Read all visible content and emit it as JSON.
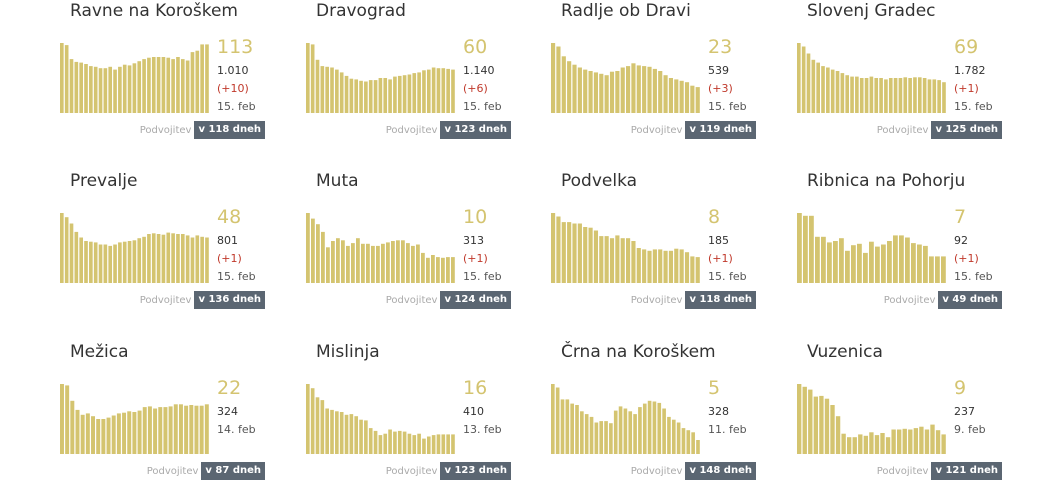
{
  "bar_color": "#d4c470",
  "number_color": "#d4c470",
  "delta_color": "#c0392b",
  "badge_color": "#5b6672",
  "doubling_label": "Podvojitev",
  "chart_data": [
    {
      "type": "bar",
      "title": "Ravne na Koroškem",
      "current": "113",
      "total": "1.010",
      "delta": "(+10)",
      "date": "15. feb",
      "doubling": "v 118 dneh",
      "values": [
        100,
        97,
        77,
        73,
        72,
        70,
        67,
        66,
        64,
        64,
        66,
        62,
        66,
        69,
        68,
        71,
        74,
        77,
        79,
        80,
        80,
        80,
        79,
        77,
        80,
        77,
        75,
        87,
        89,
        98,
        98
      ]
    },
    {
      "type": "bar",
      "title": "Dravograd",
      "current": "60",
      "total": "1.140",
      "delta": "(+6)",
      "date": "15. feb",
      "doubling": "v 123 dneh",
      "values": [
        100,
        98,
        76,
        67,
        66,
        65,
        62,
        58,
        53,
        49,
        48,
        46,
        45,
        47,
        47,
        50,
        50,
        48,
        52,
        53,
        54,
        55,
        57,
        58,
        61,
        62,
        65,
        64,
        64,
        63,
        62
      ]
    },
    {
      "type": "bar",
      "title": "Radlje ob Dravi",
      "current": "23",
      "total": "539",
      "delta": "(+3)",
      "date": "15. feb",
      "doubling": "v 119 dneh",
      "values": [
        100,
        95,
        81,
        74,
        69,
        65,
        62,
        60,
        58,
        56,
        54,
        59,
        60,
        65,
        67,
        71,
        68,
        67,
        66,
        63,
        60,
        54,
        50,
        48,
        46,
        44,
        39,
        37
      ]
    },
    {
      "type": "bar",
      "title": "Slovenj Gradec",
      "current": "69",
      "total": "1.782",
      "delta": "(+1)",
      "date": "15. feb",
      "doubling": "v 125 dneh",
      "values": [
        100,
        95,
        85,
        76,
        72,
        67,
        65,
        62,
        60,
        57,
        54,
        52,
        52,
        50,
        50,
        52,
        50,
        50,
        48,
        50,
        50,
        50,
        51,
        50,
        51,
        51,
        50,
        48,
        48,
        47,
        44
      ]
    },
    {
      "type": "bar",
      "title": "Prevalje",
      "current": "48",
      "total": "801",
      "delta": "(+1)",
      "date": "15. feb",
      "doubling": "v 136 dneh",
      "values": [
        100,
        94,
        85,
        73,
        65,
        60,
        59,
        58,
        55,
        55,
        53,
        55,
        58,
        59,
        60,
        61,
        64,
        66,
        70,
        71,
        70,
        69,
        72,
        71,
        70,
        70,
        68,
        65,
        68,
        66,
        65
      ]
    },
    {
      "type": "bar",
      "title": "Muta",
      "current": "10",
      "total": "313",
      "delta": "(+1)",
      "date": "15. feb",
      "doubling": "v 124 dneh",
      "values": [
        100,
        92,
        84,
        73,
        51,
        60,
        64,
        61,
        53,
        57,
        64,
        56,
        56,
        53,
        53,
        56,
        58,
        60,
        61,
        61,
        57,
        53,
        55,
        43,
        36,
        40,
        37,
        36,
        37,
        37
      ]
    },
    {
      "type": "bar",
      "title": "Podvelka",
      "current": "8",
      "total": "185",
      "delta": "(+1)",
      "date": "15. feb",
      "doubling": "v 118 dneh",
      "values": [
        100,
        95,
        87,
        87,
        85,
        85,
        80,
        79,
        75,
        67,
        67,
        64,
        68,
        64,
        64,
        60,
        50,
        48,
        46,
        48,
        48,
        46,
        46,
        49,
        48,
        44,
        38,
        37
      ]
    },
    {
      "type": "bar",
      "title": "Ribnica na Pohorju",
      "current": "7",
      "total": "92",
      "delta": "(+1)",
      "date": "15. feb",
      "doubling": "v 49 dneh",
      "values": [
        100,
        96,
        96,
        66,
        66,
        58,
        60,
        64,
        46,
        54,
        56,
        43,
        59,
        52,
        55,
        60,
        68,
        68,
        65,
        57,
        55,
        53,
        38,
        38,
        38
      ]
    },
    {
      "type": "bar",
      "title": "Mežica",
      "current": "22",
      "total": "324",
      "delta": "",
      "date": "14. feb",
      "doubling": "v 87 dneh",
      "values": [
        100,
        98,
        76,
        63,
        56,
        58,
        54,
        50,
        50,
        52,
        55,
        58,
        59,
        61,
        60,
        62,
        67,
        68,
        65,
        67,
        67,
        68,
        71,
        71,
        69,
        70,
        69,
        69,
        71
      ]
    },
    {
      "type": "bar",
      "title": "Mislinja",
      "current": "16",
      "total": "410",
      "delta": "",
      "date": "13. feb",
      "doubling": "v 123 dneh",
      "values": [
        100,
        94,
        81,
        77,
        65,
        63,
        61,
        60,
        56,
        57,
        54,
        49,
        48,
        37,
        33,
        27,
        29,
        35,
        32,
        33,
        32,
        29,
        27,
        29,
        22,
        25,
        27,
        28,
        28,
        28,
        28
      ]
    },
    {
      "type": "bar",
      "title": "Črna na Koroškem",
      "current": "5",
      "total": "328",
      "delta": "",
      "date": "11. feb",
      "doubling": "v 148 dneh",
      "values": [
        100,
        95,
        78,
        78,
        72,
        70,
        61,
        57,
        53,
        45,
        47,
        47,
        44,
        62,
        68,
        65,
        61,
        57,
        67,
        72,
        76,
        75,
        73,
        65,
        53,
        49,
        45,
        37,
        34,
        31,
        20
      ]
    },
    {
      "type": "bar",
      "title": "Vuzenica",
      "current": "9",
      "total": "237",
      "delta": "",
      "date": "9. feb",
      "doubling": "v 121 dneh",
      "values": [
        100,
        96,
        92,
        82,
        83,
        79,
        70,
        54,
        29,
        24,
        24,
        28,
        26,
        31,
        27,
        30,
        24,
        35,
        35,
        36,
        35,
        37,
        39,
        35,
        42,
        34,
        28
      ]
    }
  ]
}
